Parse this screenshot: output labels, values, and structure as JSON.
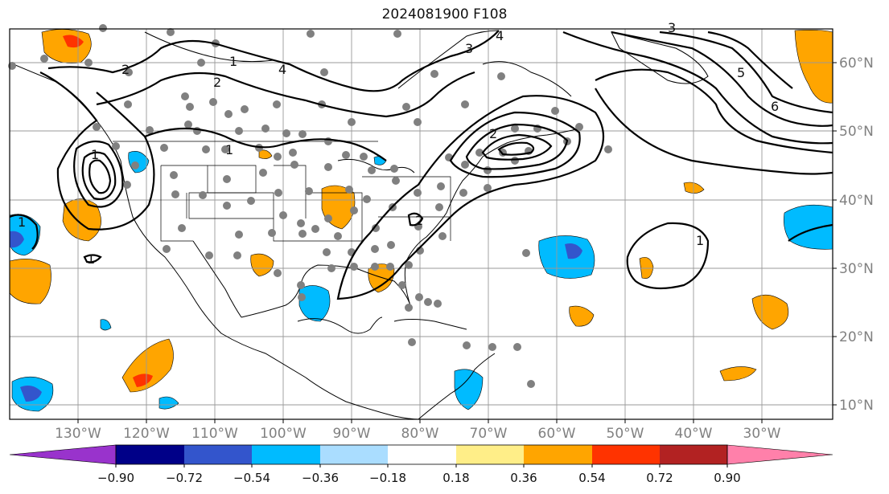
{
  "title": "2024081900 F108",
  "lon_labels": [
    "130°W",
    "120°W",
    "110°W",
    "100°W",
    "90°W",
    "80°W",
    "70°W",
    "60°W",
    "50°W",
    "40°W",
    "30°W"
  ],
  "lat_labels": [
    "60°N",
    "50°N",
    "40°N",
    "30°N",
    "20°N",
    "10°N"
  ],
  "colorbar": {
    "colors": [
      "#9933cc",
      "#000088",
      "#3355cc",
      "#00bbff",
      "#aaddff",
      "#ffffff",
      "#ffee88",
      "#ffa500",
      "#ff3300",
      "#b22222",
      "#ff80aa"
    ],
    "tick_labels": [
      "−0.90",
      "−0.72",
      "−0.54",
      "−0.36",
      "−0.18",
      "0.18",
      "0.36",
      "0.54",
      "0.72",
      "0.90"
    ]
  },
  "contour_labels": [
    "1",
    "2",
    "3",
    "4",
    "5",
    "6",
    "1",
    "2",
    "3",
    "4",
    "1",
    "2",
    "1",
    "1",
    "2",
    "1"
  ]
}
